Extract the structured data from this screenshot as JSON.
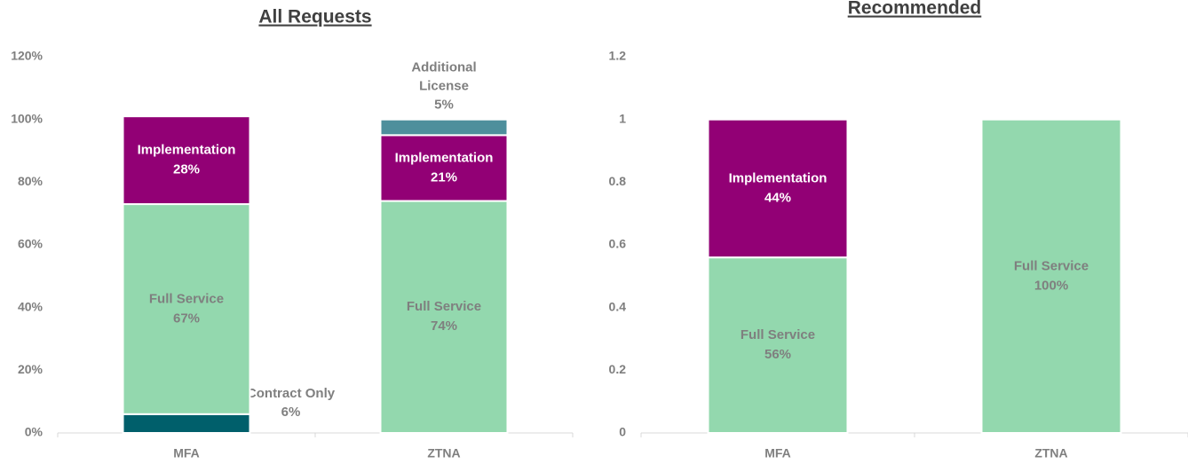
{
  "chart_data": [
    {
      "type": "stacked-bar",
      "title": "All Requests",
      "categories": [
        "MFA",
        "ZTNA"
      ],
      "series": [
        {
          "name": "Contract Only",
          "color": "#005f6b",
          "values": [
            6,
            null
          ],
          "value_labels": [
            "6%",
            null
          ]
        },
        {
          "name": "Full Service",
          "color": "#93d8ae",
          "values": [
            67,
            74
          ],
          "value_labels": [
            "67%",
            "74%"
          ]
        },
        {
          "name": "Implementation",
          "color": "#920075",
          "values": [
            28,
            21
          ],
          "value_labels": [
            "28%",
            "21%"
          ]
        },
        {
          "name": "Additional License",
          "color": "#4e8f9c",
          "values": [
            null,
            5
          ],
          "value_labels": [
            null,
            "5%"
          ]
        }
      ],
      "ylim": [
        0,
        120
      ],
      "yticks": [
        {
          "value": 0,
          "label": "0%"
        },
        {
          "value": 20,
          "label": "20%"
        },
        {
          "value": 40,
          "label": "40%"
        },
        {
          "value": 60,
          "label": "60%"
        },
        {
          "value": 80,
          "label": "80%"
        },
        {
          "value": 100,
          "label": "100%"
        },
        {
          "value": 120,
          "label": "120%"
        }
      ],
      "grid": false
    },
    {
      "type": "stacked-bar",
      "title": "Recommended",
      "categories": [
        "MFA",
        "ZTNA"
      ],
      "series": [
        {
          "name": "Full Service",
          "color": "#93d8ae",
          "values": [
            0.56,
            1
          ],
          "value_labels": [
            "56%",
            "100%"
          ]
        },
        {
          "name": "Implementation",
          "color": "#920075",
          "values": [
            0.44,
            null
          ],
          "value_labels": [
            "44%",
            null
          ]
        }
      ],
      "ylim": [
        0,
        1.2
      ],
      "yticks": [
        0,
        0.2,
        0.4,
        0.6,
        0.8,
        1,
        1.2
      ],
      "grid": false
    }
  ]
}
